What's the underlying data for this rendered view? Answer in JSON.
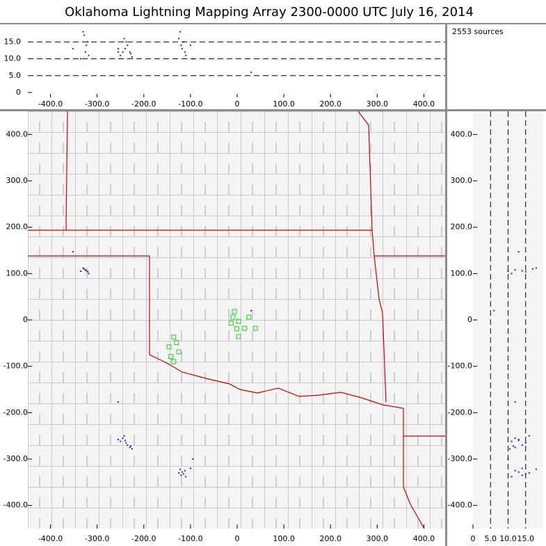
{
  "title": "Oklahoma Lightning Mapping Array   2300-0000 UTC  July 16, 2014",
  "source_count": "2553 sources",
  "xlim": [
    -450,
    450
  ],
  "ylim": [
    -450,
    450
  ],
  "zlim": [
    0,
    20
  ],
  "xticks": [
    {
      "value": -400,
      "label": "-400.0"
    },
    {
      "value": -300,
      "label": "-300.0"
    },
    {
      "value": -200,
      "label": "-200.0"
    },
    {
      "value": -100,
      "label": "-100.0"
    },
    0,
    {
      "value": 100,
      "label": "100.0"
    },
    {
      "value": 200,
      "label": "200.0"
    },
    {
      "value": 300,
      "label": "300.0"
    },
    {
      "value": 400,
      "label": "400.0"
    }
  ],
  "yticks": [
    {
      "value": -400,
      "label": "-400.0"
    },
    {
      "value": -300,
      "label": "-300.0"
    },
    {
      "value": -200,
      "label": "-200.0"
    },
    {
      "value": -100,
      "label": "-100.0"
    },
    0,
    {
      "value": 100,
      "label": "100.0"
    },
    {
      "value": 200,
      "label": "200.0"
    },
    {
      "value": 300,
      "label": "300.0"
    },
    {
      "value": 400,
      "label": "400.0"
    }
  ],
  "zticks": [
    0,
    {
      "value": 5,
      "label": "5.0"
    },
    {
      "value": 10,
      "label": "10.0"
    },
    {
      "value": 15,
      "label": "15.0"
    }
  ],
  "z_grid": "dashed",
  "station_color": "#22cc22",
  "source_color": "#2a1ed0",
  "stations": {
    "x": [
      -6,
      -9,
      3,
      -13,
      25,
      16,
      39,
      -1,
      3,
      -136,
      -130,
      -146,
      -125,
      -142,
      -136
    ],
    "y": [
      18,
      6,
      -3,
      -7,
      6,
      -18,
      -18,
      -19,
      -36,
      -37,
      -49,
      -58,
      -69,
      -79,
      -90
    ]
  },
  "sources": {
    "x": [
      -325,
      -320,
      -328,
      -318,
      -323,
      -330,
      -335,
      -245,
      -240,
      -250,
      -235,
      -230,
      -225,
      -255,
      -238,
      -228,
      -242,
      -118,
      -115,
      -120,
      -112,
      -125,
      -110,
      -122,
      -100,
      -352,
      -255,
      30,
      -95
    ],
    "y": [
      108,
      104,
      110,
      100,
      106,
      112,
      105,
      -255,
      -260,
      -262,
      -270,
      -275,
      -278,
      -258,
      -265,
      -272,
      -250,
      -328,
      -332,
      -335,
      -325,
      -330,
      -338,
      -322,
      -320,
      147,
      -177,
      20,
      -300
    ],
    "z": [
      12,
      15,
      17,
      11,
      14,
      18,
      10,
      12,
      13,
      11,
      14,
      12,
      10.5,
      13,
      15,
      11.5,
      16,
      13,
      15,
      14,
      12,
      16,
      11,
      18,
      14,
      13,
      12,
      6,
      10
    ]
  }
}
